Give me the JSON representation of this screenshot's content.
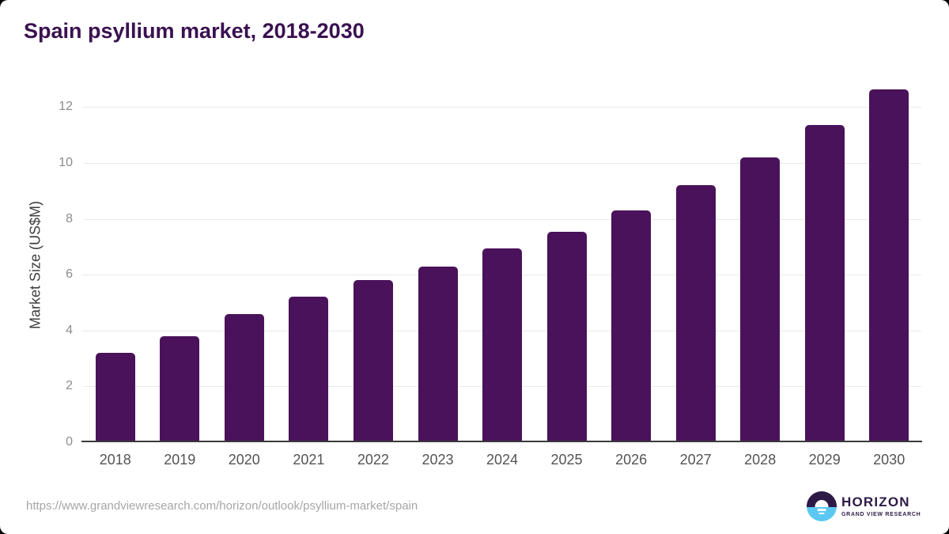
{
  "chart_data": {
    "type": "bar",
    "title": "Spain psyllium market, 2018-2030",
    "xlabel": "",
    "ylabel": "Market Size (US$M)",
    "categories": [
      "2018",
      "2019",
      "2020",
      "2021",
      "2022",
      "2023",
      "2024",
      "2025",
      "2026",
      "2027",
      "2028",
      "2029",
      "2030"
    ],
    "values": [
      3.2,
      3.8,
      4.6,
      5.2,
      5.8,
      6.3,
      6.95,
      7.55,
      8.3,
      9.2,
      10.2,
      11.35,
      12.65
    ],
    "ylim": [
      0,
      13
    ],
    "yticks": [
      0,
      2,
      4,
      6,
      8,
      10,
      12
    ],
    "grid": true,
    "legend_position": "none",
    "bar_color": "#4a125a"
  },
  "footer": {
    "source_url": "https://www.grandviewresearch.com/horizon/outlook/psyllium-market/spain",
    "logo": {
      "brand": "HORIZON",
      "subtitle": "GRAND VIEW RESEARCH",
      "icon": "sun-over-water-icon"
    }
  },
  "colors": {
    "title_color": "#3a1150",
    "bar_color": "#4a125a",
    "gridline_color": "#e9e9e9",
    "axis_color": "#3a3a3a",
    "ytick_color": "#8c8c8c",
    "xtick_color": "#545454",
    "ylabel_color": "#3d3d3d",
    "url_color": "#a6a6a6",
    "logo_purple": "#2e1a47",
    "logo_blue": "#5bc8f2"
  }
}
